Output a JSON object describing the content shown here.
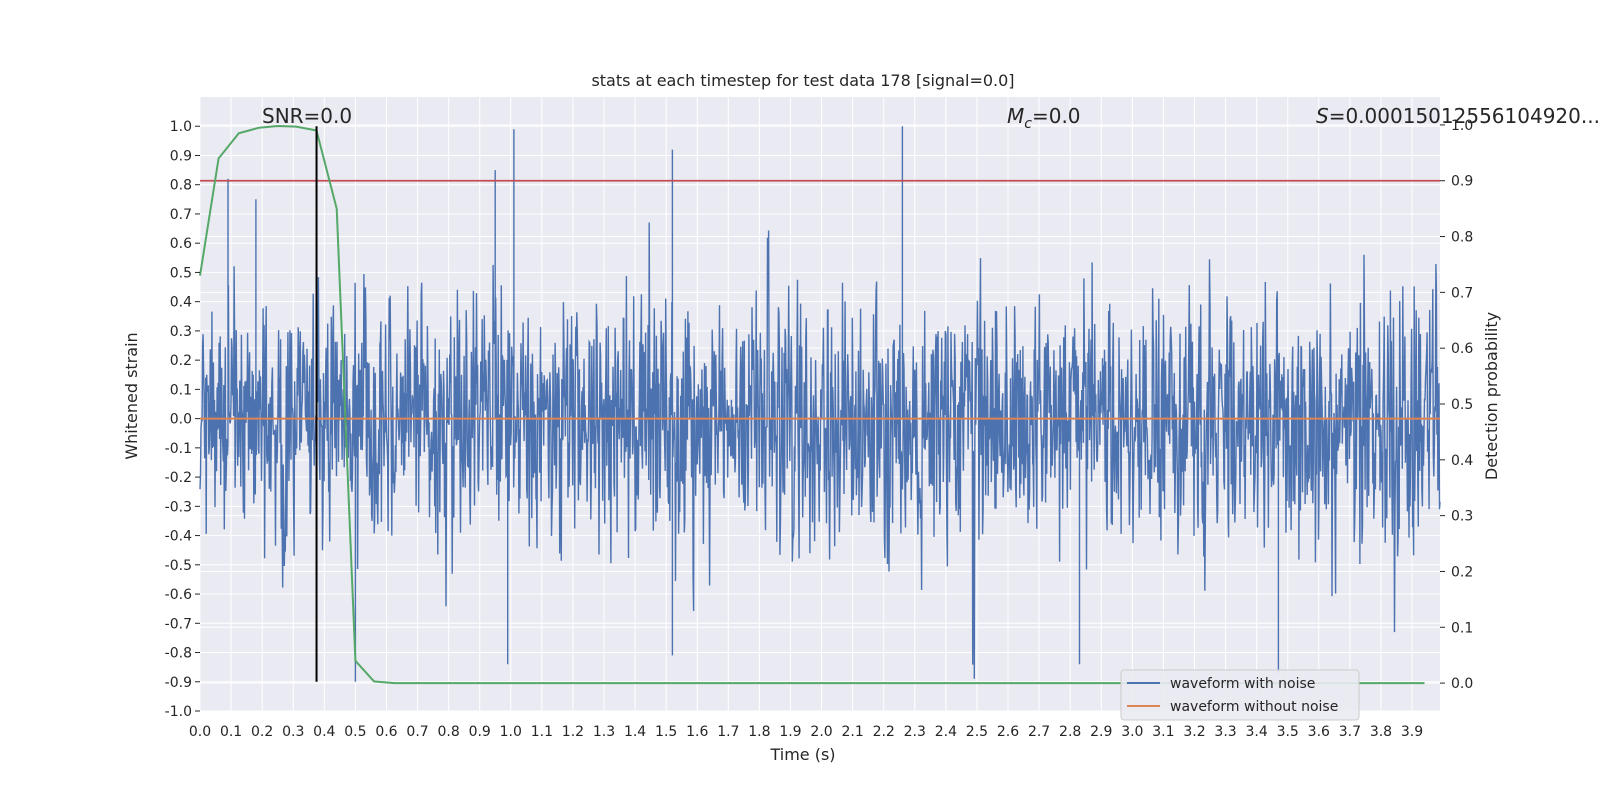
{
  "chart_data": {
    "type": "line",
    "title": "stats at each timestep for test data 178 [signal=0.0]",
    "xlabel": "Time (s)",
    "ylabel": "Whitened strain",
    "y2label": "Detection probability",
    "xlim": [
      0.0,
      3.99
    ],
    "ylim": [
      -1.0,
      1.1
    ],
    "y2lim": [
      -0.05,
      1.05
    ],
    "x_ticks": [
      "0.0",
      "0.1",
      "0.2",
      "0.3",
      "0.4",
      "0.5",
      "0.6",
      "0.7",
      "0.8",
      "0.9",
      "1.0",
      "1.1",
      "1.2",
      "1.3",
      "1.4",
      "1.5",
      "1.6",
      "1.7",
      "1.8",
      "1.9",
      "2.0",
      "2.1",
      "2.2",
      "2.3",
      "2.4",
      "2.5",
      "2.6",
      "2.7",
      "2.8",
      "2.9",
      "3.0",
      "3.1",
      "3.2",
      "3.3",
      "3.4",
      "3.5",
      "3.6",
      "3.7",
      "3.8",
      "3.9"
    ],
    "y_ticks": [
      "1.0",
      "0.9",
      "0.8",
      "0.7",
      "0.6",
      "0.5",
      "0.4",
      "0.3",
      "0.2",
      "0.1",
      "0.0",
      "-0.1",
      "-0.2",
      "-0.3",
      "-0.4",
      "-0.5",
      "-0.6",
      "-0.7",
      "-0.8",
      "-0.9",
      "-1.0"
    ],
    "y2_ticks": [
      "1.0",
      "0.9",
      "0.8",
      "0.7",
      "0.6",
      "0.5",
      "0.4",
      "0.3",
      "0.2",
      "0.1",
      "0.0"
    ],
    "annotations": {
      "snr": "SNR=0.0",
      "mc_symbol": "M",
      "mc_sub": "c",
      "mc_value": "=0.0",
      "s_symbol": "S",
      "s_value": "=0.00015012556104920..."
    },
    "threshold": {
      "value": 0.9,
      "axis": "right",
      "color": "#c44e52"
    },
    "peak_marker": {
      "x": 0.375,
      "y_from": -0.9,
      "y_to": 1.0,
      "color": "#000000"
    },
    "noise_envelope_peaks": [
      {
        "x": 0.09,
        "y": 0.82
      },
      {
        "x": 0.18,
        "y": 0.75
      },
      {
        "x": 0.95,
        "y": 0.85
      },
      {
        "x": 1.01,
        "y": 0.99
      },
      {
        "x": 1.52,
        "y": 0.92
      },
      {
        "x": 2.26,
        "y": 1.0
      },
      {
        "x": 0.99,
        "y": -0.84
      },
      {
        "x": 1.52,
        "y": -0.81
      },
      {
        "x": 2.83,
        "y": -0.84
      },
      {
        "x": 3.47,
        "y": -0.87
      },
      {
        "x": 0.5,
        "y": -0.9
      }
    ],
    "series": [
      {
        "name": "waveform with noise",
        "axis": "left",
        "color": "#4c72b0",
        "style": "dense noise, amplitude ~0.3-0.7"
      },
      {
        "name": "waveform without noise",
        "axis": "left",
        "color": "#dd8452",
        "x": [
          0.0,
          3.99
        ],
        "y": [
          0.0,
          0.0
        ]
      },
      {
        "name": "detection probability",
        "axis": "right",
        "color": "#55a868",
        "x": [
          0.0,
          0.06,
          0.125,
          0.19,
          0.25,
          0.31,
          0.375,
          0.44,
          0.5,
          0.56,
          0.625,
          0.69,
          3.94
        ],
        "y": [
          0.73,
          0.94,
          0.985,
          0.995,
          0.998,
          0.997,
          0.99,
          0.85,
          0.04,
          0.003,
          0.0,
          0.0,
          0.0
        ]
      }
    ],
    "legend": {
      "placement": "lower-right",
      "entries": [
        {
          "label": "waveform with noise",
          "color": "#4c72b0"
        },
        {
          "label": "waveform without noise",
          "color": "#dd8452"
        }
      ]
    }
  }
}
